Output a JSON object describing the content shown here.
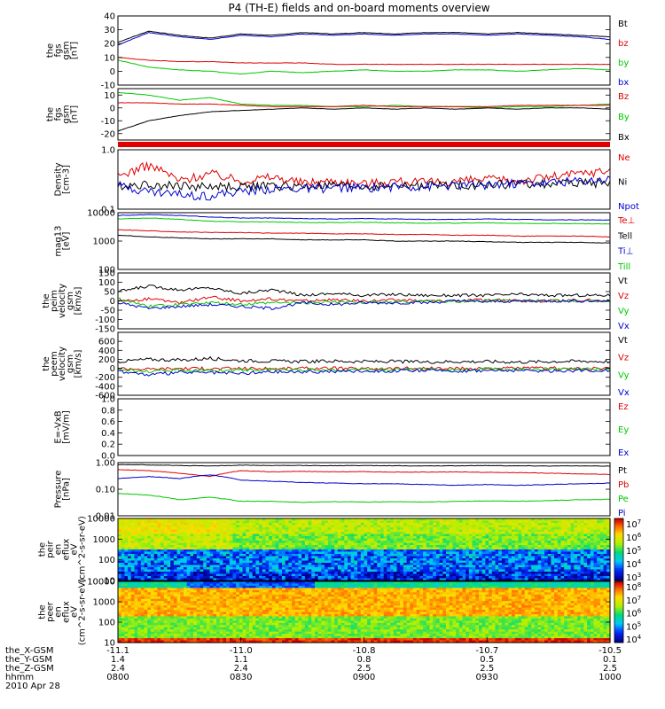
{
  "title": "P4 (TH-E) fields and on-board moments overview",
  "colors": {
    "black": "#000000",
    "red": "#e00000",
    "green": "#00c800",
    "blue": "#0000d0"
  },
  "chart_data": [
    {
      "id": "fgs",
      "type": "line",
      "ylabel": "the fgs gsm [nT]",
      "ylim": [
        -10,
        40
      ],
      "y_ticks": [
        "40",
        "30",
        "20",
        "10",
        "0",
        "-10"
      ],
      "legend": [
        {
          "label": "Bt",
          "color": "#000000"
        },
        {
          "label": "bz",
          "color": "#e00000"
        },
        {
          "label": "by",
          "color": "#00c800"
        },
        {
          "label": "bx",
          "color": "#0000d0"
        }
      ],
      "series": [
        {
          "name": "Bt",
          "color": "#000000",
          "values": [
            21,
            29,
            26,
            24,
            27,
            26,
            28,
            27,
            28,
            27,
            28,
            28,
            27,
            28,
            27,
            26,
            25
          ]
        },
        {
          "name": "bz",
          "color": "#e00000",
          "values": [
            10,
            8,
            7,
            7,
            6,
            6,
            6,
            5,
            5,
            5,
            5,
            5,
            5,
            5,
            5,
            5,
            5
          ]
        },
        {
          "name": "by",
          "color": "#00c800",
          "values": [
            8,
            3,
            1,
            0,
            -2,
            0,
            -1,
            0,
            1,
            0,
            0,
            1,
            1,
            0,
            1,
            2,
            1
          ]
        },
        {
          "name": "bx",
          "color": "#0000d0",
          "values": [
            19,
            28,
            25,
            23,
            26,
            25,
            27,
            26,
            27,
            26,
            27,
            27,
            26,
            27,
            26,
            25,
            23
          ]
        }
      ]
    },
    {
      "id": "fgs-dev",
      "type": "line",
      "ylabel": "the fgs gsm [nT]",
      "ylim": [
        -25,
        15
      ],
      "y_ticks": [
        "10",
        "0",
        "-10",
        "-20"
      ],
      "legend": [
        {
          "label": "Bz",
          "color": "#e00000"
        },
        {
          "label": "By",
          "color": "#00c800"
        },
        {
          "label": "Bx",
          "color": "#000000"
        }
      ],
      "series": [
        {
          "name": "By",
          "color": "#00c800",
          "values": [
            12,
            10,
            6,
            8,
            3,
            2,
            2,
            1,
            1,
            2,
            1,
            1,
            0,
            1,
            1,
            2,
            3
          ]
        },
        {
          "name": "Bz",
          "color": "#e00000",
          "values": [
            4,
            4,
            3,
            3,
            2,
            1,
            1,
            1,
            2,
            1,
            1,
            1,
            1,
            2,
            2,
            2,
            2
          ]
        },
        {
          "name": "Bx",
          "color": "#000000",
          "values": [
            -18,
            -10,
            -6,
            -3,
            -2,
            -1,
            0,
            -1,
            0,
            -1,
            0,
            -1,
            0,
            -1,
            0,
            0,
            -1
          ]
        }
      ]
    },
    {
      "id": "density",
      "type": "line",
      "ylabel": "Density [cm-3]",
      "ylim": [
        0.1,
        1.0
      ],
      "log": true,
      "y_ticks": [
        "1.0",
        "0.1"
      ],
      "legend": [
        {
          "label": "Ne",
          "color": "#e00000"
        },
        {
          "label": "Ni",
          "color": "#000000"
        },
        {
          "label": "Npot",
          "color": "#0000d0"
        }
      ],
      "series": [
        {
          "name": "Ne",
          "color": "#e00000",
          "values": [
            0.35,
            0.55,
            0.3,
            0.4,
            0.3,
            0.35,
            0.28,
            0.3,
            0.27,
            0.3,
            0.28,
            0.3,
            0.32,
            0.3,
            0.35,
            0.4,
            0.45
          ]
        },
        {
          "name": "Ni",
          "color": "#000000",
          "values": [
            0.25,
            0.26,
            0.25,
            0.24,
            0.24,
            0.25,
            0.24,
            0.25,
            0.24,
            0.25,
            0.25,
            0.26,
            0.26,
            0.27,
            0.27,
            0.28,
            0.28
          ]
        },
        {
          "name": "Npot",
          "color": "#0000d0",
          "values": [
            0.25,
            0.2,
            0.18,
            0.17,
            0.2,
            0.22,
            0.22,
            0.23,
            0.23,
            0.24,
            0.24,
            0.25,
            0.26,
            0.27,
            0.28,
            0.3,
            0.32
          ]
        }
      ]
    },
    {
      "id": "temperature",
      "type": "line",
      "ylabel": "mag13 [eV]",
      "ylim": [
        100,
        10000
      ],
      "log": true,
      "y_ticks": [
        "10000",
        "1000",
        "100"
      ],
      "legend": [
        {
          "label": "Te⊥",
          "color": "#e00000"
        },
        {
          "label": "Tell",
          "color": "#000000"
        },
        {
          "label": "Ti⊥",
          "color": "#0000d0"
        },
        {
          "label": "Till",
          "color": "#00c800"
        }
      ],
      "series": [
        {
          "name": "Ti⊥",
          "color": "#0000d0",
          "values": [
            8000,
            8500,
            8000,
            7000,
            6500,
            6500,
            6200,
            6000,
            6200,
            6000,
            5800,
            5800,
            6000,
            5800,
            5600,
            5600,
            5500
          ]
        },
        {
          "name": "Till",
          "color": "#00c800",
          "values": [
            6000,
            6500,
            5800,
            5000,
            4800,
            4700,
            4500,
            4500,
            4600,
            4400,
            4300,
            4300,
            4400,
            4200,
            4200,
            4100,
            4000
          ]
        },
        {
          "name": "Te⊥",
          "color": "#e00000",
          "values": [
            2500,
            2300,
            2100,
            2000,
            2000,
            1900,
            1900,
            1800,
            1800,
            1700,
            1700,
            1600,
            1600,
            1500,
            1500,
            1500,
            1400
          ]
        },
        {
          "name": "Tell",
          "color": "#000000",
          "values": [
            1600,
            1400,
            1300,
            1200,
            1200,
            1200,
            1100,
            1100,
            1100,
            1000,
            1000,
            1000,
            950,
            900,
            900,
            900,
            850
          ]
        }
      ]
    },
    {
      "id": "peim-velocity",
      "type": "line",
      "ylabel": "the peim velocity gsm [km/s]",
      "ylim": [
        -150,
        150
      ],
      "y_ticks": [
        "150",
        "100",
        "50",
        "0",
        "-50",
        "-100",
        "-150"
      ],
      "legend": [
        {
          "label": "Vt",
          "color": "#000000"
        },
        {
          "label": "Vz",
          "color": "#e00000"
        },
        {
          "label": "Vy",
          "color": "#00c800"
        },
        {
          "label": "Vx",
          "color": "#0000d0"
        }
      ],
      "series": [
        {
          "name": "Vt",
          "color": "#000000",
          "values": [
            50,
            80,
            60,
            70,
            40,
            60,
            30,
            40,
            30,
            35,
            30,
            30,
            30,
            35,
            30,
            30,
            30
          ]
        },
        {
          "name": "Vz",
          "color": "#e00000",
          "values": [
            0,
            10,
            -10,
            20,
            0,
            10,
            0,
            5,
            0,
            5,
            0,
            0,
            5,
            0,
            0,
            5,
            0
          ]
        },
        {
          "name": "Vy",
          "color": "#00c800",
          "values": [
            10,
            -30,
            -20,
            -10,
            -20,
            -10,
            -10,
            -5,
            -10,
            -5,
            0,
            -5,
            0,
            5,
            0,
            0,
            0
          ]
        },
        {
          "name": "Vx",
          "color": "#0000d0",
          "values": [
            -10,
            -40,
            -30,
            -20,
            -30,
            -40,
            -10,
            -20,
            -10,
            -10,
            -10,
            0,
            -5,
            0,
            0,
            0,
            0
          ]
        }
      ]
    },
    {
      "id": "peem-velocity",
      "type": "line",
      "ylabel": "the peem velocity gsm [km/s]",
      "ylim": [
        -600,
        800
      ],
      "y_ticks": [
        "600",
        "400",
        "200",
        "0",
        "-200",
        "-400",
        "-600"
      ],
      "legend": [
        {
          "label": "Vt",
          "color": "#000000"
        },
        {
          "label": "Vz",
          "color": "#e00000"
        },
        {
          "label": "Vy",
          "color": "#00c800"
        },
        {
          "label": "Vx",
          "color": "#0000d0"
        }
      ],
      "series": [
        {
          "name": "Vt",
          "color": "#000000",
          "values": [
            150,
            200,
            180,
            220,
            170,
            160,
            150,
            160,
            150,
            150,
            140,
            150,
            150,
            140,
            150,
            160,
            150
          ]
        },
        {
          "name": "Vz",
          "color": "#e00000",
          "values": [
            0,
            -20,
            0,
            -10,
            0,
            -10,
            0,
            0,
            -10,
            0,
            0,
            -10,
            0,
            0,
            0,
            -10,
            0
          ]
        },
        {
          "name": "Vy",
          "color": "#00c800",
          "values": [
            -20,
            -60,
            -40,
            -50,
            -40,
            -30,
            -30,
            -30,
            -20,
            -30,
            -20,
            -30,
            -20,
            -20,
            -20,
            -20,
            -20
          ]
        },
        {
          "name": "Vx",
          "color": "#0000d0",
          "values": [
            -60,
            -150,
            -90,
            -100,
            -120,
            -80,
            -80,
            -70,
            -60,
            -60,
            -50,
            -60,
            -50,
            -50,
            -60,
            -50,
            -50
          ]
        }
      ]
    },
    {
      "id": "efield",
      "type": "line",
      "ylabel": "E=-VxB [mV/m]",
      "ylim": [
        0,
        1.0
      ],
      "y_ticks": [
        "1.0",
        "0.8",
        "0.6",
        "0.4",
        "0.2",
        "0.0"
      ],
      "legend": [
        {
          "label": "Ez",
          "color": "#e00000"
        },
        {
          "label": "Ey",
          "color": "#00c800"
        },
        {
          "label": "Ex",
          "color": "#0000d0"
        }
      ],
      "series": []
    },
    {
      "id": "pressure",
      "type": "line",
      "ylabel": "Pressure [nPa]",
      "ylim": [
        0.01,
        1.0
      ],
      "log": true,
      "y_ticks": [
        "1.00",
        "0.10",
        "0.01"
      ],
      "legend": [
        {
          "label": "Pt",
          "color": "#000000"
        },
        {
          "label": "Pb",
          "color": "#e00000"
        },
        {
          "label": "Pe",
          "color": "#00c800"
        },
        {
          "label": "Pi",
          "color": "#0000d0"
        }
      ],
      "series": [
        {
          "name": "Pt",
          "color": "#000000",
          "values": [
            0.85,
            0.82,
            0.78,
            0.75,
            0.8,
            0.78,
            0.78,
            0.77,
            0.78,
            0.76,
            0.75,
            0.76,
            0.78,
            0.76,
            0.75,
            0.75,
            0.74
          ]
        },
        {
          "name": "Pb",
          "color": "#e00000",
          "values": [
            0.55,
            0.5,
            0.4,
            0.3,
            0.5,
            0.45,
            0.47,
            0.45,
            0.46,
            0.44,
            0.44,
            0.45,
            0.43,
            0.42,
            0.4,
            0.38,
            0.36
          ]
        },
        {
          "name": "Pi",
          "color": "#0000d0",
          "values": [
            0.25,
            0.3,
            0.25,
            0.35,
            0.22,
            0.2,
            0.18,
            0.17,
            0.16,
            0.16,
            0.15,
            0.14,
            0.15,
            0.14,
            0.15,
            0.16,
            0.17
          ]
        },
        {
          "name": "Pe",
          "color": "#00c800",
          "values": [
            0.07,
            0.06,
            0.04,
            0.05,
            0.035,
            0.035,
            0.032,
            0.034,
            0.033,
            0.034,
            0.033,
            0.035,
            0.036,
            0.035,
            0.037,
            0.04,
            0.042
          ]
        }
      ]
    },
    {
      "id": "peir-spectrogram",
      "type": "heatmap",
      "ylabel": "the peir en eflux eV (cm^2-s-sr-eV)",
      "ylim": [
        10,
        10000
      ],
      "log": true,
      "y_ticks": [
        "10000",
        "1000",
        "100",
        "10"
      ],
      "colorbar": [
        "10^7",
        "10^6",
        "10^5",
        "10^4",
        "10^3"
      ]
    },
    {
      "id": "peer-spectrogram",
      "type": "heatmap",
      "ylabel": "the peer en eflux eV (cm^2-s-sr-eV)",
      "ylim": [
        10,
        10000
      ],
      "log": true,
      "y_ticks": [
        "10000",
        "1000",
        "100",
        "10"
      ],
      "colorbar": [
        "10^8",
        "10^7",
        "10^6",
        "10^5",
        "10^4"
      ]
    }
  ],
  "x_axis": {
    "row_labels": [
      "the_X-GSM",
      "the_Y-GSM",
      "the_Z-GSM",
      "hhmm",
      "2010 Apr 28"
    ],
    "ticks": [
      {
        "x": "-11.1",
        "y": "1.4",
        "z": "2.4",
        "t": "0800"
      },
      {
        "x": "-11.0",
        "y": "1.1",
        "z": "2.4",
        "t": "0830"
      },
      {
        "x": "-10.8",
        "y": "0.8",
        "z": "2.5",
        "t": "0900"
      },
      {
        "x": "-10.7",
        "y": "0.5",
        "z": "2.5",
        "t": "0930"
      },
      {
        "x": "-10.5",
        "y": "0.1",
        "z": "2.5",
        "t": "1000"
      }
    ]
  }
}
